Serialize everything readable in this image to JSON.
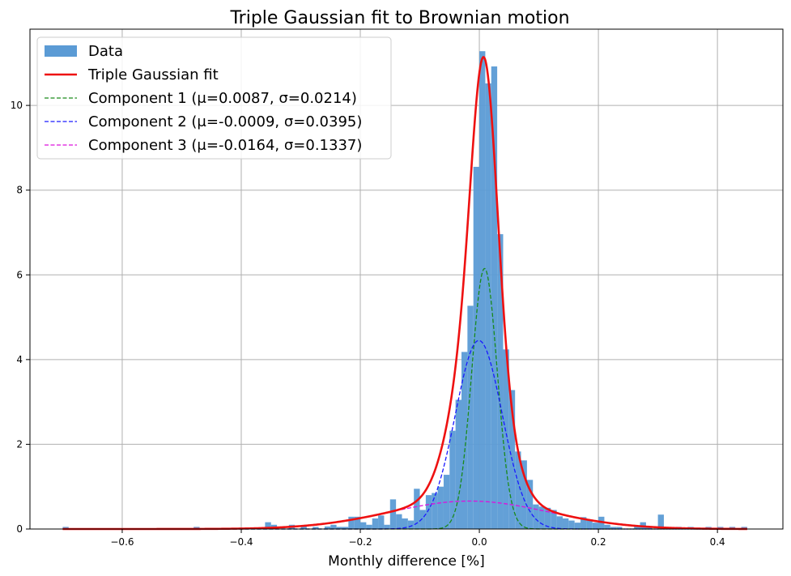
{
  "chart_data": {
    "type": "bar",
    "title": "Triple Gaussian fit to Brownian motion",
    "xlabel": "Monthly difference [%]",
    "ylabel": "",
    "xlim": [
      -0.755,
      0.51
    ],
    "ylim": [
      0,
      11.8
    ],
    "xticks": [
      -0.6,
      -0.4,
      -0.2,
      0.0,
      0.2,
      0.4
    ],
    "xtick_labels": [
      "−0.6",
      "−0.4",
      "−0.2",
      "0.0",
      "0.2",
      "0.4"
    ],
    "yticks": [
      0,
      2,
      4,
      6,
      8,
      10
    ],
    "ytick_labels": [
      "0",
      "2",
      "4",
      "6",
      "8",
      "10"
    ],
    "grid": true,
    "legend_position": "top-left",
    "colors": {
      "histogram": "#5b9bd5",
      "fit": "#ee1111",
      "component1": "#1a8a1a",
      "component2": "#1a1aff",
      "component3": "#dd11dd"
    },
    "histogram": {
      "name": "Data",
      "bin_width": 0.01,
      "bins": [
        [
          -0.7,
          0.05
        ],
        [
          -0.48,
          0.05
        ],
        [
          -0.36,
          0.16
        ],
        [
          -0.35,
          0.1
        ],
        [
          -0.32,
          0.1
        ],
        [
          -0.3,
          0.06
        ],
        [
          -0.28,
          0.05
        ],
        [
          -0.26,
          0.06
        ],
        [
          -0.25,
          0.1
        ],
        [
          -0.24,
          0.05
        ],
        [
          -0.23,
          0.05
        ],
        [
          -0.22,
          0.29
        ],
        [
          -0.21,
          0.29
        ],
        [
          -0.2,
          0.16
        ],
        [
          -0.19,
          0.1
        ],
        [
          -0.18,
          0.25
        ],
        [
          -0.17,
          0.32
        ],
        [
          -0.16,
          0.1
        ],
        [
          -0.15,
          0.7
        ],
        [
          -0.14,
          0.35
        ],
        [
          -0.13,
          0.25
        ],
        [
          -0.12,
          0.2
        ],
        [
          -0.11,
          0.95
        ],
        [
          -0.1,
          0.45
        ],
        [
          -0.09,
          0.8
        ],
        [
          -0.08,
          0.85
        ],
        [
          -0.07,
          1.0
        ],
        [
          -0.06,
          1.28
        ],
        [
          -0.05,
          2.32
        ],
        [
          -0.04,
          3.05
        ],
        [
          -0.03,
          4.18
        ],
        [
          -0.02,
          5.27
        ],
        [
          -0.01,
          8.55
        ],
        [
          0.0,
          11.28
        ],
        [
          0.01,
          10.52
        ],
        [
          0.02,
          10.92
        ],
        [
          0.03,
          6.96
        ],
        [
          0.04,
          4.24
        ],
        [
          0.05,
          3.28
        ],
        [
          0.06,
          1.83
        ],
        [
          0.07,
          1.62
        ],
        [
          0.08,
          1.16
        ],
        [
          0.09,
          0.58
        ],
        [
          0.1,
          0.53
        ],
        [
          0.11,
          0.5
        ],
        [
          0.12,
          0.45
        ],
        [
          0.13,
          0.3
        ],
        [
          0.14,
          0.25
        ],
        [
          0.15,
          0.2
        ],
        [
          0.16,
          0.15
        ],
        [
          0.17,
          0.28
        ],
        [
          0.18,
          0.2
        ],
        [
          0.19,
          0.15
        ],
        [
          0.2,
          0.29
        ],
        [
          0.21,
          0.1
        ],
        [
          0.22,
          0.05
        ],
        [
          0.23,
          0.05
        ],
        [
          0.26,
          0.06
        ],
        [
          0.27,
          0.16
        ],
        [
          0.28,
          0.05
        ],
        [
          0.3,
          0.34
        ],
        [
          0.33,
          0.05
        ],
        [
          0.35,
          0.05
        ],
        [
          0.38,
          0.05
        ],
        [
          0.4,
          0.05
        ],
        [
          0.42,
          0.05
        ],
        [
          0.44,
          0.05
        ]
      ]
    },
    "series": [
      {
        "name": "Triple Gaussian fit",
        "kind": "sum",
        "style": "solid",
        "color_key": "fit"
      },
      {
        "name": "Component 1 (μ=0.0087, σ=0.0214)",
        "kind": "component",
        "mu": 0.0087,
        "sigma": 0.0214,
        "amplitude": 6.15,
        "style": "dashed",
        "color_key": "component1"
      },
      {
        "name": "Component 2 (μ=-0.0009, σ=0.0395)",
        "kind": "component",
        "mu": -0.0009,
        "sigma": 0.0395,
        "amplitude": 4.45,
        "style": "dashed",
        "color_key": "component2"
      },
      {
        "name": "Component 3 (μ=-0.0164, σ=0.1337)",
        "kind": "component",
        "mu": -0.0164,
        "sigma": 0.1337,
        "amplitude": 0.66,
        "style": "dashed",
        "color_key": "component3"
      }
    ],
    "curve_range": [
      -0.7,
      0.45
    ]
  }
}
